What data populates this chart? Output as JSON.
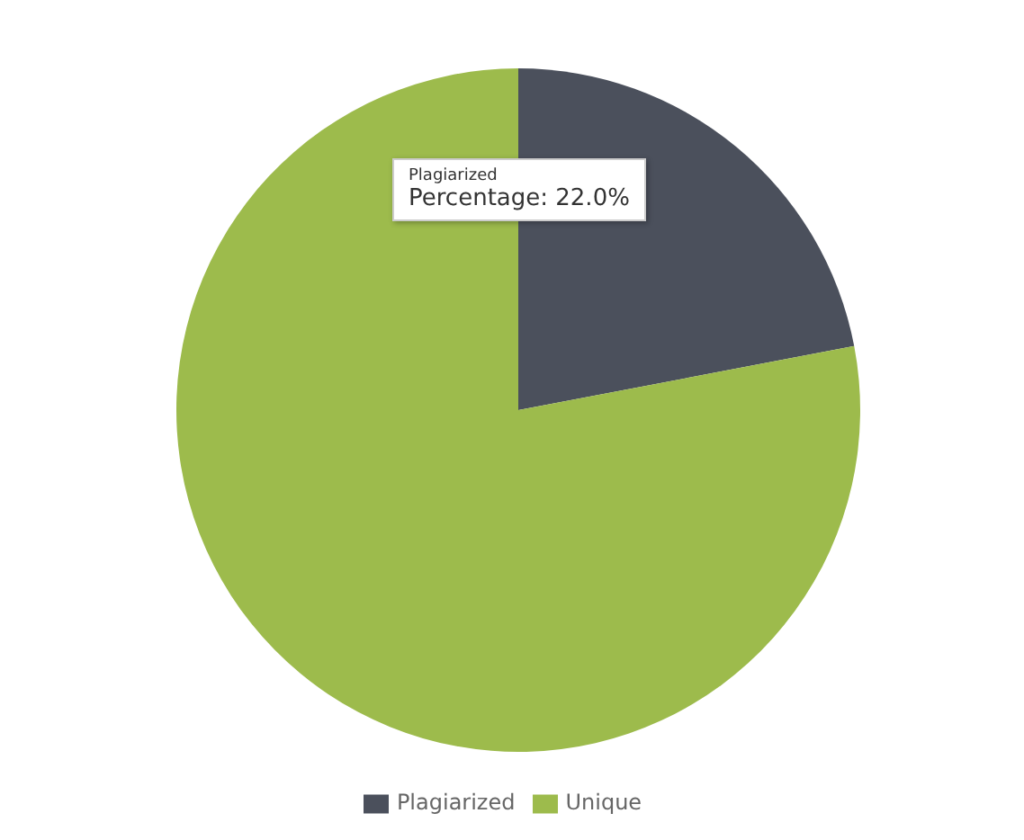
{
  "chart_data": {
    "type": "pie",
    "categories": [
      "Plagiarized",
      "Unique"
    ],
    "values": [
      22,
      78
    ],
    "colors": [
      "#4b505c",
      "#9dbb4c"
    ],
    "legend": "bottom",
    "annotations": [
      "Plagiarized",
      "Percentage: 22.0%"
    ]
  }
}
